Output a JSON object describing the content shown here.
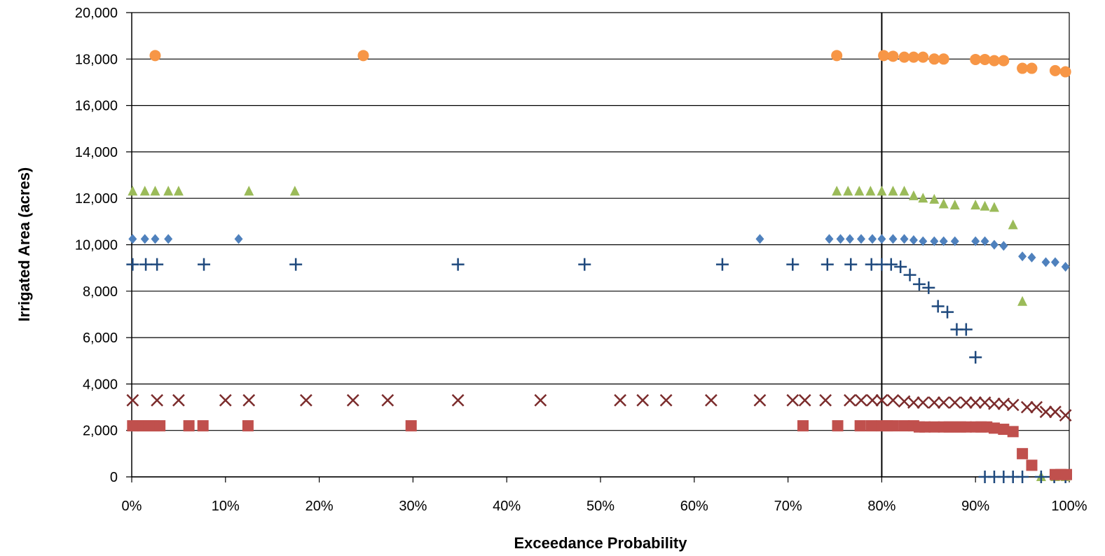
{
  "chart_data": {
    "type": "scatter",
    "title": "",
    "xlabel": "Exceedance Probability",
    "ylabel": "Irrigated Area (acres)",
    "xlim": [
      0,
      1
    ],
    "ylim": [
      0,
      20000
    ],
    "x_ticks": [
      0,
      0.1,
      0.2,
      0.3,
      0.4,
      0.5,
      0.6,
      0.7,
      0.8,
      0.9,
      1.0
    ],
    "x_tick_labels": [
      "0%",
      "10%",
      "20%",
      "30%",
      "40%",
      "50%",
      "60%",
      "70%",
      "80%",
      "90%",
      "100%"
    ],
    "y_ticks": [
      0,
      2000,
      4000,
      6000,
      8000,
      10000,
      12000,
      14000,
      16000,
      18000,
      20000
    ],
    "y_tick_labels": [
      "0",
      "2,000",
      "4,000",
      "6,000",
      "8,000",
      "10,000",
      "12,000",
      "14,000",
      "16,000",
      "18,000",
      "20,000"
    ],
    "grid": "horizontal",
    "legend": "none",
    "reference_line_x": 0.8,
    "series": [
      {
        "marker": "circle",
        "color": "#F79646",
        "x": [
          0.025,
          0.247,
          0.752,
          0.802,
          0.812,
          0.824,
          0.834,
          0.844,
          0.856,
          0.866,
          0.9,
          0.91,
          0.92,
          0.93,
          0.95,
          0.96,
          0.985,
          0.996
        ],
        "y": [
          18150,
          18150,
          18150,
          18150,
          18120,
          18080,
          18080,
          18080,
          18000,
          18000,
          17980,
          17980,
          17930,
          17930,
          17600,
          17600,
          17500,
          17450
        ]
      },
      {
        "marker": "triangle",
        "color": "#9BBB59",
        "x": [
          0.001,
          0.014,
          0.025,
          0.039,
          0.05,
          0.125,
          0.174,
          0.752,
          0.764,
          0.776,
          0.788,
          0.8,
          0.812,
          0.824,
          0.834,
          0.844,
          0.856,
          0.866,
          0.878,
          0.9,
          0.91,
          0.92,
          0.94,
          0.95,
          0.97,
          0.985,
          0.996
        ],
        "y": [
          12300,
          12300,
          12300,
          12300,
          12300,
          12300,
          12300,
          12300,
          12300,
          12300,
          12300,
          12300,
          12300,
          12300,
          12100,
          12000,
          11950,
          11750,
          11700,
          11700,
          11650,
          11600,
          10850,
          7550,
          0,
          0,
          0
        ]
      },
      {
        "marker": "diamond",
        "color": "#4F81BD",
        "x": [
          0.001,
          0.014,
          0.025,
          0.039,
          0.114,
          0.67,
          0.744,
          0.756,
          0.766,
          0.778,
          0.79,
          0.8,
          0.812,
          0.824,
          0.834,
          0.844,
          0.856,
          0.866,
          0.878,
          0.9,
          0.91,
          0.92,
          0.93,
          0.95,
          0.96,
          0.975,
          0.985,
          0.996
        ],
        "y": [
          10250,
          10250,
          10250,
          10250,
          10250,
          10250,
          10250,
          10250,
          10250,
          10250,
          10250,
          10250,
          10250,
          10250,
          10200,
          10150,
          10150,
          10150,
          10150,
          10150,
          10150,
          10000,
          9950,
          9500,
          9450,
          9250,
          9250,
          9050
        ]
      },
      {
        "marker": "plus",
        "color": "#1F497D",
        "x": [
          0.001,
          0.015,
          0.027,
          0.077,
          0.175,
          0.348,
          0.483,
          0.63,
          0.705,
          0.742,
          0.767,
          0.789,
          0.8,
          0.81,
          0.82,
          0.83,
          0.84,
          0.85,
          0.86,
          0.87,
          0.88,
          0.89,
          0.9,
          0.91,
          0.92,
          0.93,
          0.94,
          0.95,
          0.97,
          0.984,
          0.996
        ],
        "y": [
          9150,
          9150,
          9150,
          9150,
          9150,
          9150,
          9150,
          9150,
          9150,
          9150,
          9150,
          9150,
          9150,
          9150,
          9050,
          8700,
          8300,
          8150,
          7350,
          7100,
          6350,
          6350,
          5150,
          0,
          0,
          0,
          0,
          0,
          0,
          0,
          0
        ]
      },
      {
        "marker": "x",
        "color": "#7B2C2C",
        "x": [
          0.001,
          0.027,
          0.05,
          0.1,
          0.125,
          0.186,
          0.236,
          0.273,
          0.348,
          0.436,
          0.521,
          0.545,
          0.57,
          0.618,
          0.67,
          0.705,
          0.718,
          0.74,
          0.766,
          0.778,
          0.79,
          0.8,
          0.812,
          0.824,
          0.834,
          0.844,
          0.856,
          0.866,
          0.878,
          0.89,
          0.9,
          0.91,
          0.92,
          0.93,
          0.94,
          0.955,
          0.965,
          0.975,
          0.985,
          0.996
        ],
        "y": [
          3300,
          3300,
          3300,
          3300,
          3300,
          3300,
          3300,
          3300,
          3300,
          3300,
          3300,
          3300,
          3300,
          3300,
          3300,
          3300,
          3300,
          3300,
          3300,
          3300,
          3300,
          3300,
          3300,
          3250,
          3200,
          3200,
          3200,
          3200,
          3200,
          3200,
          3200,
          3200,
          3150,
          3150,
          3100,
          3000,
          3000,
          2800,
          2800,
          2650
        ]
      },
      {
        "marker": "square",
        "color": "#C0504D",
        "x": [
          0.001,
          0.006,
          0.012,
          0.018,
          0.024,
          0.03,
          0.061,
          0.076,
          0.124,
          0.298,
          0.716,
          0.753,
          0.777,
          0.789,
          0.8,
          0.806,
          0.812,
          0.824,
          0.834,
          0.84,
          0.846,
          0.856,
          0.866,
          0.872,
          0.878,
          0.884,
          0.89,
          0.9,
          0.906,
          0.912,
          0.92,
          0.93,
          0.94,
          0.95,
          0.96,
          0.985,
          0.991,
          0.997
        ],
        "y": [
          2200,
          2200,
          2200,
          2200,
          2200,
          2200,
          2200,
          2200,
          2200,
          2200,
          2200,
          2200,
          2200,
          2200,
          2200,
          2200,
          2200,
          2200,
          2200,
          2150,
          2150,
          2150,
          2150,
          2150,
          2150,
          2150,
          2150,
          2150,
          2150,
          2150,
          2100,
          2050,
          1950,
          1000,
          500,
          100,
          100,
          100
        ]
      }
    ]
  }
}
